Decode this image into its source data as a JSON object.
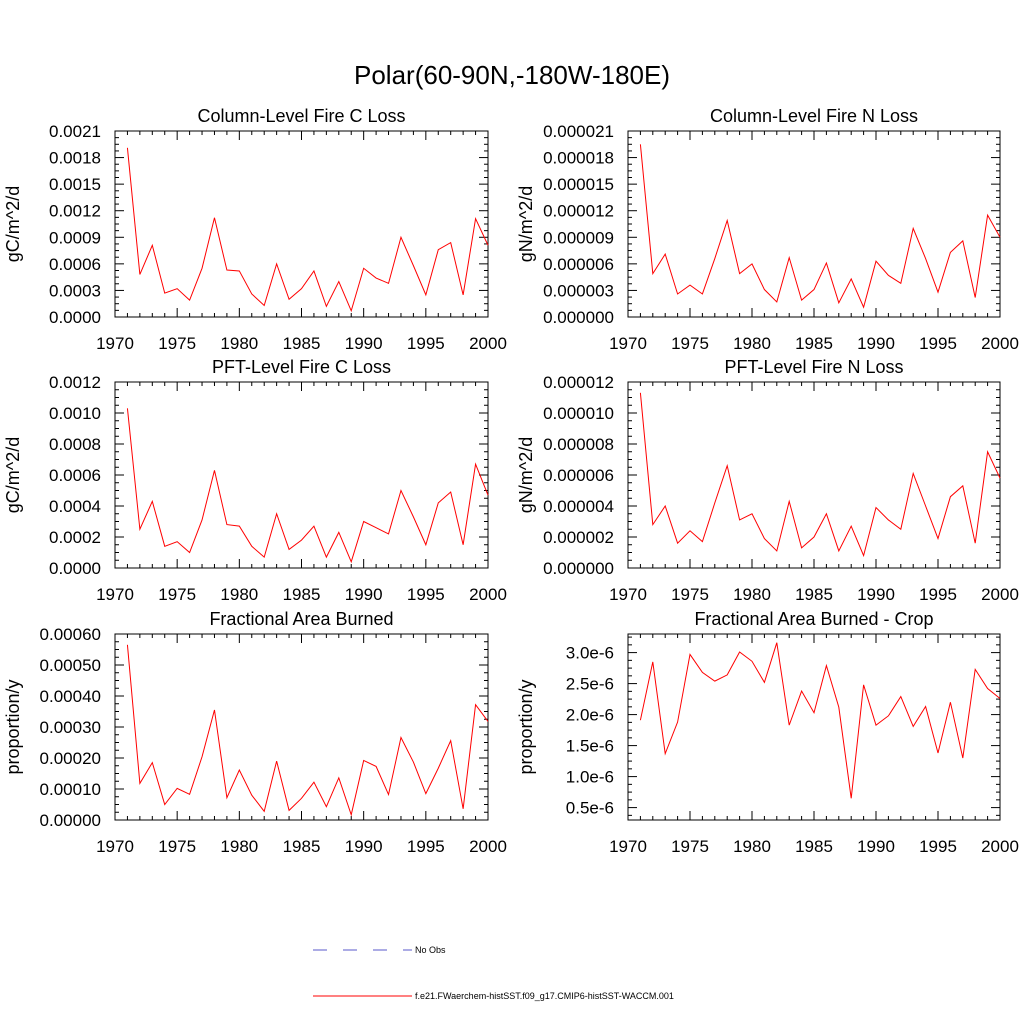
{
  "title": "Polar(60-90N,-180W-180E)",
  "legend": {
    "entries": [
      {
        "label": "No Obs",
        "color": "#5a5acb",
        "dash": "dashed"
      },
      {
        "label": "f.e21.FWaerchem-histSST.f09_g17.CMIP6-histSST-WACCM.001",
        "color": "#ff0000",
        "dash": "solid"
      }
    ]
  },
  "chart_data": [
    {
      "type": "line",
      "title": "Column-Level Fire C Loss",
      "ylabel": "gC/m^2/d",
      "xlim": [
        1970,
        2000
      ],
      "ylim": [
        0,
        0.0021
      ],
      "xticks": [
        "1970",
        "1975",
        "1980",
        "1985",
        "1990",
        "1995",
        "2000"
      ],
      "yticks": [
        "0.0000",
        "0.0003",
        "0.0006",
        "0.0009",
        "0.0012",
        "0.0015",
        "0.0018",
        "0.0021"
      ],
      "series": [
        {
          "color": "#ff0000",
          "x": [
            1971,
            1972,
            1973,
            1974,
            1975,
            1976,
            1977,
            1978,
            1979,
            1980,
            1981,
            1982,
            1983,
            1984,
            1985,
            1986,
            1987,
            1988,
            1989,
            1990,
            1991,
            1992,
            1993,
            1994,
            1995,
            1996,
            1997,
            1998,
            1999,
            2000
          ],
          "values": [
            0.00191,
            0.00048,
            0.00081,
            0.00027,
            0.00032,
            0.00019,
            0.00055,
            0.00112,
            0.00053,
            0.00052,
            0.00026,
            0.00013,
            0.0006,
            0.0002,
            0.00032,
            0.00052,
            0.00012,
            0.0004,
            7e-05,
            0.00055,
            0.00044,
            0.00038,
            0.0009,
            0.00058,
            0.00025,
            0.00076,
            0.00084,
            0.00025,
            0.00111,
            0.00081
          ]
        }
      ]
    },
    {
      "type": "line",
      "title": "Column-Level Fire N Loss",
      "ylabel": "gN/m^2/d",
      "xlim": [
        1970,
        2000
      ],
      "ylim": [
        0,
        2.1e-05
      ],
      "xticks": [
        "1970",
        "1975",
        "1980",
        "1985",
        "1990",
        "1995",
        "2000"
      ],
      "yticks": [
        "0.000000",
        "0.000003",
        "0.000006",
        "0.000009",
        "0.000012",
        "0.000015",
        "0.000018",
        "0.000021"
      ],
      "series": [
        {
          "color": "#ff0000",
          "x": [
            1971,
            1972,
            1973,
            1974,
            1975,
            1976,
            1977,
            1978,
            1979,
            1980,
            1981,
            1982,
            1983,
            1984,
            1985,
            1986,
            1987,
            1988,
            1989,
            1990,
            1991,
            1992,
            1993,
            1994,
            1995,
            1996,
            1997,
            1998,
            1999,
            2000
          ],
          "values": [
            1.95e-05,
            4.9e-06,
            7.1e-06,
            2.6e-06,
            3.6e-06,
            2.6e-06,
            6.6e-06,
            1.09e-05,
            4.9e-06,
            6e-06,
            3.1e-06,
            1.7e-06,
            6.7e-06,
            1.9e-06,
            3.1e-06,
            6.1e-06,
            1.6e-06,
            4.3e-06,
            1.1e-06,
            6.3e-06,
            4.7e-06,
            3.8e-06,
            1e-05,
            6.6e-06,
            2.8e-06,
            7.3e-06,
            8.6e-06,
            2.2e-06,
            1.15e-05,
            9e-06
          ]
        }
      ]
    },
    {
      "type": "line",
      "title": "PFT-Level Fire C Loss",
      "ylabel": "gC/m^2/d",
      "xlim": [
        1970,
        2000
      ],
      "ylim": [
        0,
        0.0012
      ],
      "xticks": [
        "1970",
        "1975",
        "1980",
        "1985",
        "1990",
        "1995",
        "2000"
      ],
      "yticks": [
        "0.0000",
        "0.0002",
        "0.0004",
        "0.0006",
        "0.0008",
        "0.0010",
        "0.0012"
      ],
      "series": [
        {
          "color": "#ff0000",
          "x": [
            1971,
            1972,
            1973,
            1974,
            1975,
            1976,
            1977,
            1978,
            1979,
            1980,
            1981,
            1982,
            1983,
            1984,
            1985,
            1986,
            1987,
            1988,
            1989,
            1990,
            1991,
            1992,
            1993,
            1994,
            1995,
            1996,
            1997,
            1998,
            1999,
            2000
          ],
          "values": [
            0.00103,
            0.00025,
            0.00043,
            0.00014,
            0.00017,
            0.0001,
            0.00031,
            0.00063,
            0.00028,
            0.00027,
            0.00014,
            7e-05,
            0.00035,
            0.00012,
            0.00018,
            0.00027,
            7e-05,
            0.00023,
            4e-05,
            0.0003,
            0.00026,
            0.00022,
            0.0005,
            0.00033,
            0.00015,
            0.00042,
            0.00049,
            0.00015,
            0.00067,
            0.00047
          ]
        }
      ]
    },
    {
      "type": "line",
      "title": "PFT-Level Fire N Loss",
      "ylabel": "gN/m^2/d",
      "xlim": [
        1970,
        2000
      ],
      "ylim": [
        0,
        1.2e-05
      ],
      "xticks": [
        "1970",
        "1975",
        "1980",
        "1985",
        "1990",
        "1995",
        "2000"
      ],
      "yticks": [
        "0.000000",
        "0.000002",
        "0.000004",
        "0.000006",
        "0.000008",
        "0.000010",
        "0.000012"
      ],
      "series": [
        {
          "color": "#ff0000",
          "x": [
            1971,
            1972,
            1973,
            1974,
            1975,
            1976,
            1977,
            1978,
            1979,
            1980,
            1981,
            1982,
            1983,
            1984,
            1985,
            1986,
            1987,
            1988,
            1989,
            1990,
            1991,
            1992,
            1993,
            1994,
            1995,
            1996,
            1997,
            1998,
            1999,
            2000
          ],
          "values": [
            1.13e-05,
            2.8e-06,
            4e-06,
            1.6e-06,
            2.4e-06,
            1.7e-06,
            4.2e-06,
            6.6e-06,
            3.1e-06,
            3.5e-06,
            1.9e-06,
            1.1e-06,
            4.3e-06,
            1.3e-06,
            2e-06,
            3.5e-06,
            1.1e-06,
            2.7e-06,
            8e-07,
            3.9e-06,
            3.1e-06,
            2.5e-06,
            6.1e-06,
            4e-06,
            1.9e-06,
            4.6e-06,
            5.3e-06,
            1.6e-06,
            7.5e-06,
            5.8e-06
          ]
        }
      ]
    },
    {
      "type": "line",
      "title": "Fractional Area Burned",
      "ylabel": "proportion/y",
      "xlim": [
        1970,
        2000
      ],
      "ylim": [
        0,
        0.0006
      ],
      "xticks": [
        "1970",
        "1975",
        "1980",
        "1985",
        "1990",
        "1995",
        "2000"
      ],
      "yticks": [
        "0.00000",
        "0.00010",
        "0.00020",
        "0.00030",
        "0.00040",
        "0.00050",
        "0.00060"
      ],
      "series": [
        {
          "color": "#ff0000",
          "x": [
            1971,
            1972,
            1973,
            1974,
            1975,
            1976,
            1977,
            1978,
            1979,
            1980,
            1981,
            1982,
            1983,
            1984,
            1985,
            1986,
            1987,
            1988,
            1989,
            1990,
            1991,
            1992,
            1993,
            1994,
            1995,
            1996,
            1997,
            1998,
            1999,
            2000
          ],
          "values": [
            0.000565,
            0.000118,
            0.000185,
            5e-05,
            0.000102,
            8.3e-05,
            0.000204,
            0.000355,
            7.2e-05,
            0.000161,
            8e-05,
            2.8e-05,
            0.00019,
            3.1e-05,
            7e-05,
            0.000122,
            4.3e-05,
            0.000136,
            1.7e-05,
            0.000192,
            0.000173,
            8.2e-05,
            0.000266,
            0.000187,
            8.5e-05,
            0.000167,
            0.000256,
            3.6e-05,
            0.000372,
            0.000318
          ]
        }
      ]
    },
    {
      "type": "line",
      "title": "Fractional Area Burned - Crop",
      "ylabel": "proportion/y",
      "xlim": [
        1970,
        2000
      ],
      "ylim": [
        3e-07,
        3.3e-06
      ],
      "xticks": [
        "1970",
        "1975",
        "1980",
        "1985",
        "1990",
        "1995",
        "2000"
      ],
      "yticks": [
        "0.5e-6",
        "1.0e-6",
        "1.5e-6",
        "2.0e-6",
        "2.5e-6",
        "3.0e-6"
      ],
      "series": [
        {
          "color": "#ff0000",
          "x": [
            1971,
            1972,
            1973,
            1974,
            1975,
            1976,
            1977,
            1978,
            1979,
            1980,
            1981,
            1982,
            1983,
            1984,
            1985,
            1986,
            1987,
            1988,
            1989,
            1990,
            1991,
            1992,
            1993,
            1994,
            1995,
            1996,
            1997,
            1998,
            1999,
            2000
          ],
          "values": [
            1.91e-06,
            2.85e-06,
            1.37e-06,
            1.88e-06,
            2.97e-06,
            2.68e-06,
            2.54e-06,
            2.64e-06,
            3.01e-06,
            2.86e-06,
            2.52e-06,
            3.16e-06,
            1.83e-06,
            2.38e-06,
            2.03e-06,
            2.79e-06,
            2.12e-06,
            6.5e-07,
            2.48e-06,
            1.83e-06,
            1.98e-06,
            2.29e-06,
            1.81e-06,
            2.13e-06,
            1.38e-06,
            2.2e-06,
            1.3e-06,
            2.73e-06,
            2.42e-06,
            2.26e-06
          ]
        }
      ]
    }
  ]
}
